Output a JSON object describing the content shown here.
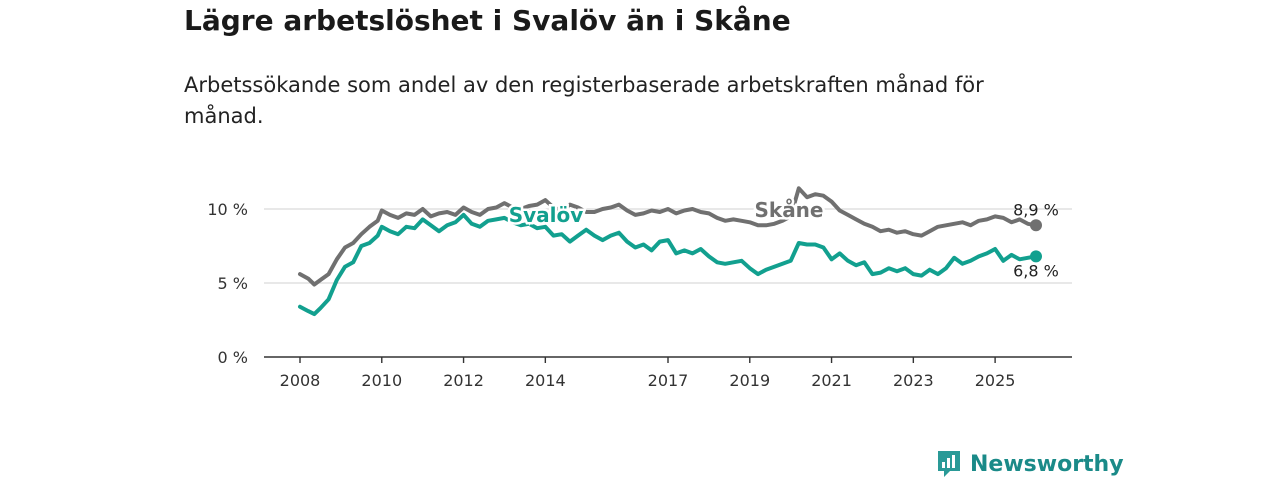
{
  "title": "Lägre arbetslöshet i Svalöv än i Skåne",
  "subtitle": "Arbetssökande som andel av den registerbaserade arbetskraften månad för månad.",
  "brand": "Newsworthy",
  "colors": {
    "skane": "#707070",
    "svalov": "#12a08f",
    "grid": "#d9d9d9",
    "axis": "#333333",
    "brand": "#1a8a88"
  },
  "chart_data": {
    "type": "line",
    "title": "Lägre arbetslöshet i Svalöv än i Skåne",
    "xlabel": "",
    "ylabel": "",
    "xlim": [
      2008,
      2026.7
    ],
    "ylim": [
      0,
      12
    ],
    "ytick_values": [
      0,
      5,
      10
    ],
    "ytick_labels": [
      "0 %",
      "5 %",
      "10 %"
    ],
    "xtick_values": [
      2008,
      2010,
      2012,
      2014,
      2017,
      2019,
      2021,
      2023,
      2025
    ],
    "xtick_labels": [
      "2008",
      "2010",
      "2012",
      "2014",
      "2017",
      "2019",
      "2021",
      "2023",
      "2025"
    ],
    "grid": true,
    "series": [
      {
        "name": "Skåne",
        "label": "Skåne",
        "end_label": "8,9 %",
        "x": [
          2008.0,
          2008.2,
          2008.35,
          2008.5,
          2008.7,
          2008.9,
          2009.1,
          2009.3,
          2009.5,
          2009.7,
          2009.9,
          2010.0,
          2010.2,
          2010.4,
          2010.6,
          2010.8,
          2011.0,
          2011.2,
          2011.4,
          2011.6,
          2011.8,
          2012.0,
          2012.2,
          2012.4,
          2012.6,
          2012.8,
          2013.0,
          2013.2,
          2013.4,
          2013.6,
          2013.8,
          2014.0,
          2014.2,
          2014.4,
          2014.6,
          2014.8,
          2015.0,
          2015.2,
          2015.4,
          2015.6,
          2015.8,
          2016.0,
          2016.2,
          2016.4,
          2016.6,
          2016.8,
          2017.0,
          2017.2,
          2017.4,
          2017.6,
          2017.8,
          2018.0,
          2018.2,
          2018.4,
          2018.6,
          2018.8,
          2019.0,
          2019.2,
          2019.4,
          2019.6,
          2019.8,
          2020.0,
          2020.2,
          2020.4,
          2020.6,
          2020.8,
          2021.0,
          2021.2,
          2021.4,
          2021.6,
          2021.8,
          2022.0,
          2022.2,
          2022.4,
          2022.6,
          2022.8,
          2023.0,
          2023.2,
          2023.4,
          2023.6,
          2023.8,
          2024.0,
          2024.2,
          2024.4,
          2024.6,
          2024.8,
          2025.0,
          2025.2,
          2025.4,
          2025.6,
          2025.8,
          2026.0
        ],
        "values": [
          5.6,
          5.3,
          4.9,
          5.2,
          5.6,
          6.6,
          7.4,
          7.7,
          8.3,
          8.8,
          9.2,
          9.9,
          9.6,
          9.4,
          9.7,
          9.6,
          10.0,
          9.5,
          9.7,
          9.8,
          9.6,
          10.1,
          9.8,
          9.6,
          10.0,
          10.1,
          10.4,
          10.1,
          10.0,
          10.2,
          10.3,
          10.6,
          10.1,
          9.9,
          10.3,
          10.1,
          9.8,
          9.8,
          10.0,
          10.1,
          10.3,
          9.9,
          9.6,
          9.7,
          9.9,
          9.8,
          10.0,
          9.7,
          9.9,
          10.0,
          9.8,
          9.7,
          9.4,
          9.2,
          9.3,
          9.2,
          9.1,
          8.9,
          8.9,
          9.0,
          9.2,
          9.5,
          11.4,
          10.8,
          11.0,
          10.9,
          10.5,
          9.9,
          9.6,
          9.3,
          9.0,
          8.8,
          8.5,
          8.6,
          8.4,
          8.5,
          8.3,
          8.2,
          8.5,
          8.8,
          8.9,
          9.0,
          9.1,
          8.9,
          9.2,
          9.3,
          9.5,
          9.4,
          9.1,
          9.3,
          9.0,
          8.9
        ]
      },
      {
        "name": "Svalöv",
        "label": "Svalöv",
        "end_label": "6,8 %",
        "x": [
          2008.0,
          2008.2,
          2008.35,
          2008.5,
          2008.7,
          2008.9,
          2009.1,
          2009.3,
          2009.5,
          2009.7,
          2009.9,
          2010.0,
          2010.2,
          2010.4,
          2010.6,
          2010.8,
          2011.0,
          2011.2,
          2011.4,
          2011.6,
          2011.8,
          2012.0,
          2012.2,
          2012.4,
          2012.6,
          2012.8,
          2013.0,
          2013.2,
          2013.4,
          2013.6,
          2013.8,
          2014.0,
          2014.2,
          2014.4,
          2014.6,
          2014.8,
          2015.0,
          2015.2,
          2015.4,
          2015.6,
          2015.8,
          2016.0,
          2016.2,
          2016.4,
          2016.6,
          2016.8,
          2017.0,
          2017.2,
          2017.4,
          2017.6,
          2017.8,
          2018.0,
          2018.2,
          2018.4,
          2018.6,
          2018.8,
          2019.0,
          2019.2,
          2019.4,
          2019.6,
          2019.8,
          2020.0,
          2020.2,
          2020.4,
          2020.6,
          2020.8,
          2021.0,
          2021.2,
          2021.4,
          2021.6,
          2021.8,
          2022.0,
          2022.2,
          2022.4,
          2022.6,
          2022.8,
          2023.0,
          2023.2,
          2023.4,
          2023.6,
          2023.8,
          2024.0,
          2024.2,
          2024.4,
          2024.6,
          2024.8,
          2025.0,
          2025.2,
          2025.4,
          2025.6,
          2025.8,
          2026.0
        ],
        "values": [
          3.4,
          3.1,
          2.9,
          3.3,
          3.9,
          5.2,
          6.1,
          6.4,
          7.5,
          7.7,
          8.2,
          8.8,
          8.5,
          8.3,
          8.8,
          8.7,
          9.3,
          8.9,
          8.5,
          8.9,
          9.1,
          9.6,
          9.0,
          8.8,
          9.2,
          9.3,
          9.4,
          9.1,
          8.9,
          9.0,
          8.7,
          8.8,
          8.2,
          8.3,
          7.8,
          8.2,
          8.6,
          8.2,
          7.9,
          8.2,
          8.4,
          7.8,
          7.4,
          7.6,
          7.2,
          7.8,
          7.9,
          7.0,
          7.2,
          7.0,
          7.3,
          6.8,
          6.4,
          6.3,
          6.4,
          6.5,
          6.0,
          5.6,
          5.9,
          6.1,
          6.3,
          6.5,
          7.7,
          7.6,
          7.6,
          7.4,
          6.6,
          7.0,
          6.5,
          6.2,
          6.4,
          5.6,
          5.7,
          6.0,
          5.8,
          6.0,
          5.6,
          5.5,
          5.9,
          5.6,
          6.0,
          6.7,
          6.3,
          6.5,
          6.8,
          7.0,
          7.3,
          6.5,
          6.9,
          6.6,
          6.7,
          6.8
        ]
      }
    ]
  }
}
